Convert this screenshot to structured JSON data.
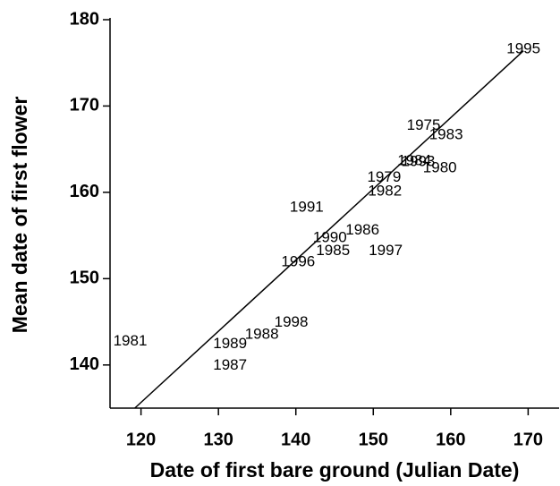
{
  "chart_data": {
    "type": "scatter",
    "x_label": "Date of first bare ground (Julian Date)",
    "y_label": "Mean date of first flower",
    "points": [
      {
        "name": "1995",
        "x": 169.4,
        "y": 176.6
      },
      {
        "name": "1981",
        "x": 118.6,
        "y": 142.7
      },
      {
        "name": "1989",
        "x": 131.5,
        "y": 142.4
      },
      {
        "name": "1987",
        "x": 131.5,
        "y": 139.9
      },
      {
        "name": "1988",
        "x": 135.6,
        "y": 143.5
      },
      {
        "name": "1998",
        "x": 139.4,
        "y": 144.9
      },
      {
        "name": "1996",
        "x": 140.3,
        "y": 151.9
      },
      {
        "name": "1991",
        "x": 141.4,
        "y": 158.2
      },
      {
        "name": "1990",
        "x": 144.4,
        "y": 154.7
      },
      {
        "name": "1985",
        "x": 144.8,
        "y": 153.2
      },
      {
        "name": "1986",
        "x": 148.6,
        "y": 155.6
      },
      {
        "name": "1997",
        "x": 151.6,
        "y": 153.2
      },
      {
        "name": "1979",
        "x": 151.4,
        "y": 161.7
      },
      {
        "name": "1982",
        "x": 151.5,
        "y": 160.1
      },
      {
        "name": "1975",
        "x": 156.5,
        "y": 167.7
      },
      {
        "name": "1983",
        "x": 159.4,
        "y": 166.6
      },
      {
        "name": "1984",
        "x": 155.3,
        "y": 163.6
      },
      {
        "name": "1993",
        "x": 155.8,
        "y": 163.5
      },
      {
        "name": "1980",
        "x": 158.6,
        "y": 162.8
      }
    ],
    "fit_line": {
      "x": [
        119.2,
        169.4
      ],
      "y": [
        135,
        176.4
      ]
    },
    "xlim": [
      116,
      174
    ],
    "ylim": [
      135,
      180
    ],
    "xticks": [
      120,
      130,
      140,
      150,
      160,
      170
    ],
    "yticks": [
      140,
      150,
      160,
      170,
      180
    ],
    "color": "#000000"
  }
}
